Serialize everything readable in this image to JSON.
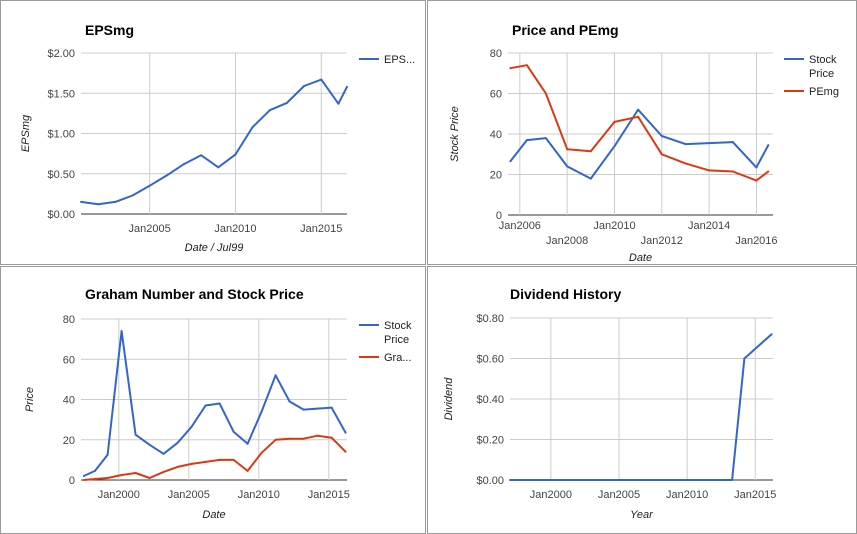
{
  "chart_data": [
    {
      "type": "line",
      "title": "EPSmg",
      "xlabel": "Date / Jul99",
      "ylabel": "EPSmg",
      "x_ticks": [
        "Jan2005",
        "Jan2010",
        "Jan2015"
      ],
      "y_ticks": [
        "$0.00",
        "$0.50",
        "$1.00",
        "$1.50",
        "$2.00"
      ],
      "xlim": [
        2001.0,
        2016.5
      ],
      "ylim": [
        0,
        2.0
      ],
      "legend_position": "right",
      "grid": true,
      "series": [
        {
          "name": "EPS...",
          "color": "#3366cc",
          "x": [
            2001.0,
            2002.0,
            2003.0,
            2004.0,
            2005.0,
            2006.0,
            2007.0,
            2008.0,
            2009.0,
            2010.0,
            2011.0,
            2012.0,
            2013.0,
            2014.0,
            2015.0,
            2016.0,
            2016.5
          ],
          "y": [
            0.15,
            0.12,
            0.15,
            0.23,
            0.35,
            0.48,
            0.62,
            0.73,
            0.58,
            0.74,
            1.08,
            1.29,
            1.38,
            1.59,
            1.67,
            1.37,
            1.58
          ]
        }
      ]
    },
    {
      "type": "line",
      "title": "Price and PEmg",
      "xlabel": "Date",
      "ylabel": "Stock Price",
      "x_ticks": [
        "Jan2006",
        "Jan2008",
        "Jan2010",
        "Jan2012",
        "Jan2014",
        "Jan2016"
      ],
      "y_ticks": [
        "0",
        "20",
        "40",
        "60",
        "80"
      ],
      "xlim": [
        2005.5,
        2016.7
      ],
      "ylim": [
        0,
        80
      ],
      "legend_position": "right",
      "grid": true,
      "series": [
        {
          "name": "Stock Price",
          "color": "#3366cc",
          "x": [
            2005.6,
            2006.3,
            2007.1,
            2008.0,
            2009.0,
            2010.0,
            2011.0,
            2012.0,
            2013.0,
            2014.0,
            2015.0,
            2016.0,
            2016.5
          ],
          "y": [
            26.5,
            37.0,
            38.0,
            24.0,
            18.0,
            34.0,
            52.0,
            39.0,
            35.0,
            35.5,
            36.0,
            23.5,
            34.5
          ]
        },
        {
          "name": "PEmg",
          "color": "#dc3912",
          "x": [
            2005.6,
            2006.3,
            2007.1,
            2008.0,
            2009.0,
            2010.0,
            2011.0,
            2012.0,
            2013.0,
            2014.0,
            2015.0,
            2016.0,
            2016.5
          ],
          "y": [
            72.5,
            74.0,
            60.0,
            32.5,
            31.5,
            46.0,
            48.5,
            30.0,
            25.5,
            22.0,
            21.5,
            17.0,
            21.5
          ]
        }
      ]
    },
    {
      "type": "line",
      "title": "Graham Number and Stock Price",
      "xlabel": "Date",
      "ylabel": "Price",
      "x_ticks": [
        "Jan2000",
        "Jan2005",
        "Jan2010",
        "Jan2015"
      ],
      "y_ticks": [
        "0",
        "20",
        "40",
        "60",
        "80"
      ],
      "xlim": [
        1997.3,
        2016.3
      ],
      "ylim": [
        0,
        80
      ],
      "legend_position": "right",
      "grid": true,
      "series": [
        {
          "name": "Stock Price",
          "color": "#3366cc",
          "x": [
            1997.5,
            1998.3,
            1999.2,
            2000.2,
            2001.2,
            2002.2,
            2003.2,
            2004.2,
            2005.2,
            2006.2,
            2007.2,
            2008.2,
            2009.2,
            2010.2,
            2011.2,
            2012.2,
            2013.2,
            2014.2,
            2015.2,
            2016.2
          ],
          "y": [
            2.0,
            4.5,
            12.5,
            74.0,
            22.5,
            17.5,
            13.0,
            18.5,
            26.5,
            37.0,
            38.0,
            24.0,
            18.0,
            34.0,
            52.0,
            39.0,
            35.0,
            35.5,
            36.0,
            23.5
          ]
        },
        {
          "name": "Gra...",
          "color": "#dc3912",
          "x": [
            1997.5,
            1998.3,
            1999.2,
            2000.2,
            2001.2,
            2002.2,
            2003.2,
            2004.2,
            2005.2,
            2006.2,
            2007.2,
            2008.2,
            2009.2,
            2010.2,
            2011.2,
            2012.2,
            2013.2,
            2014.2,
            2015.2,
            2016.2
          ],
          "y": [
            0.0,
            0.5,
            1.0,
            2.5,
            3.5,
            1.0,
            4.0,
            6.5,
            8.0,
            9.0,
            10.0,
            10.0,
            4.5,
            13.5,
            20.0,
            20.5,
            20.5,
            22.0,
            21.0,
            14.0
          ]
        }
      ]
    },
    {
      "type": "line",
      "title": "Dividend History",
      "xlabel": "Year",
      "ylabel": "Dividend",
      "x_ticks": [
        "Jan2000",
        "Jan2005",
        "Jan2010",
        "Jan2015"
      ],
      "y_ticks": [
        "$0.00",
        "$0.20",
        "$0.40",
        "$0.60",
        "$0.80"
      ],
      "xlim": [
        1997.0,
        2016.3
      ],
      "ylim": [
        0,
        0.8
      ],
      "legend_position": "none",
      "grid": true,
      "series": [
        {
          "color": "#3366cc",
          "x": [
            1997.0,
            2013.3,
            2014.2,
            2016.2
          ],
          "y": [
            0.0,
            0.0,
            0.6,
            0.72
          ]
        }
      ]
    }
  ]
}
